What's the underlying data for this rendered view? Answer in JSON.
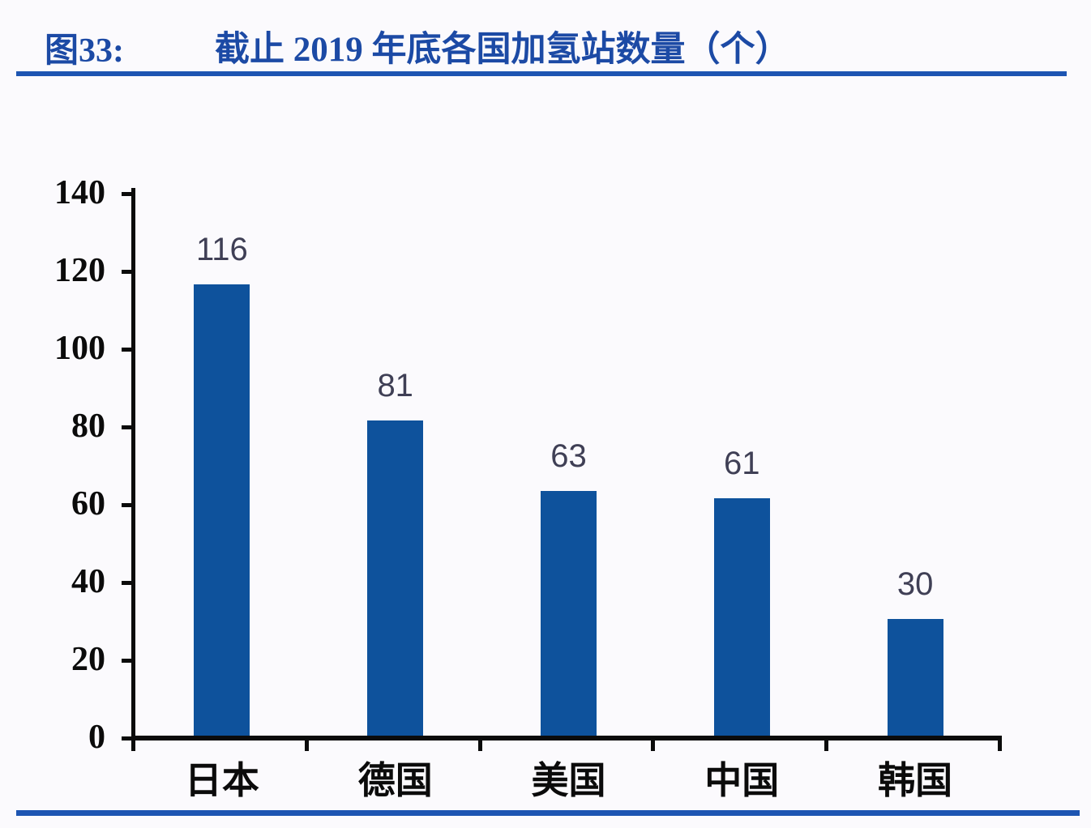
{
  "header": {
    "figure_label": "图33:",
    "title": "截止 2019 年底各国加氢站数量（个）"
  },
  "colors": {
    "header_blue": "#1c4aa5",
    "rule_blue": "#1d55b2",
    "bar_blue": "#0e529c",
    "value_label": "#3f3f55",
    "axis_black": "#0b0b0b"
  },
  "chart_data": {
    "type": "bar",
    "title": "截止 2019 年底各国加氢站数量（个）",
    "categories": [
      "日本",
      "德国",
      "美国",
      "中国",
      "韩国"
    ],
    "values": [
      116,
      81,
      63,
      61,
      30
    ],
    "xlabel": "",
    "ylabel": "",
    "ylim": [
      0,
      140
    ],
    "yticks": [
      0,
      20,
      40,
      60,
      80,
      100,
      120,
      140
    ],
    "grid": "off",
    "legend": "none",
    "bar_color": "#0e529c",
    "value_labels_shown": true
  }
}
